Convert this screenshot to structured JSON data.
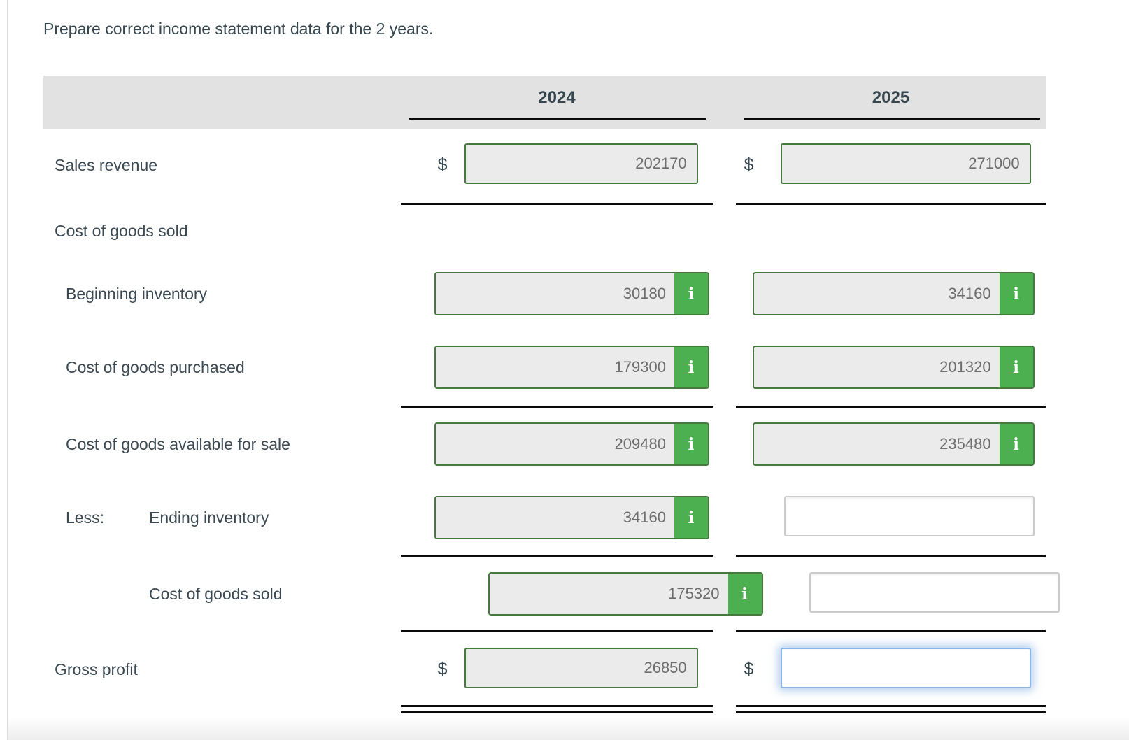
{
  "title": "Prepare correct income statement data for the 2 years.",
  "currency_symbol": "$",
  "info_icon_glyph": "i",
  "header": {
    "col_2024": "2024",
    "col_2025": "2025"
  },
  "rows": {
    "sales_revenue": {
      "label": "Sales revenue",
      "value_2024": "202170",
      "value_2025": "271000"
    },
    "cost_of_goods_sold_section": {
      "label": "Cost of goods sold"
    },
    "beginning_inventory": {
      "label": "Beginning inventory",
      "value_2024": "30180",
      "value_2025": "34160"
    },
    "cost_of_goods_purchased": {
      "label": "Cost of goods purchased",
      "value_2024": "179300",
      "value_2025": "201320"
    },
    "cost_of_goods_available": {
      "label": "Cost of goods available for sale",
      "value_2024": "209480",
      "value_2025": "235480"
    },
    "ending_inventory": {
      "prefix": "Less:",
      "label": "Ending inventory",
      "value_2024": "34160",
      "value_2025": ""
    },
    "cost_of_goods_sold": {
      "label": "Cost of goods sold",
      "value_2024": "175320",
      "value_2025": ""
    },
    "gross_profit": {
      "label": "Gross profit",
      "value_2024": "26850",
      "value_2025": ""
    }
  },
  "colors": {
    "accent_green": "#4caf50",
    "input_border_green": "#45793d",
    "focus_blue": "#8ab5e4",
    "header_band_gray": "#e2e2e2",
    "label_text": "#3b4953"
  }
}
